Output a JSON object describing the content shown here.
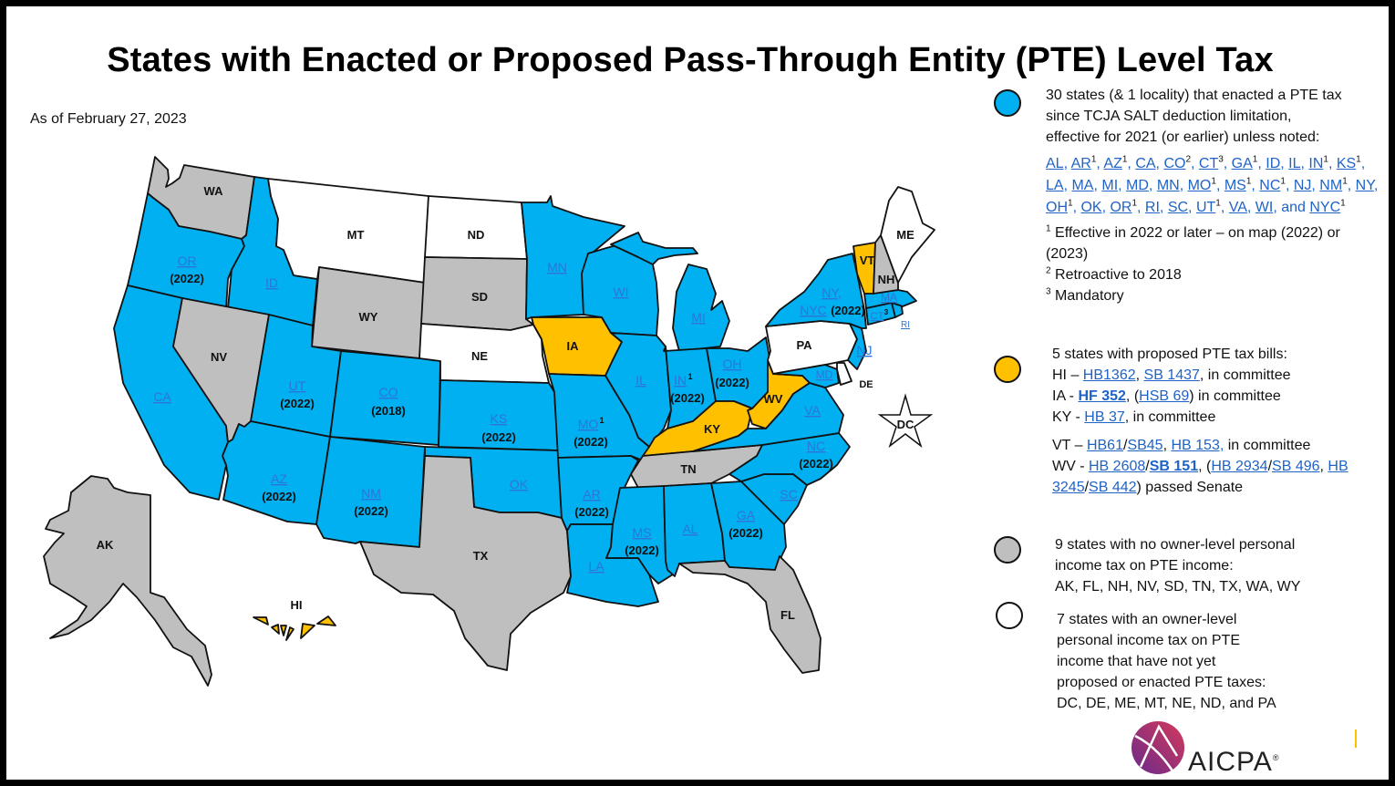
{
  "title": "States with Enacted or Proposed Pass-Through Entity (PTE) Level Tax",
  "as_of": "As of February 27, 2023",
  "colors": {
    "enacted": "#00b0f0",
    "proposed": "#ffc000",
    "no_income_tax": "#bfbfbf",
    "not_yet": "#ffffff",
    "link": "#1f63c6"
  },
  "map": {
    "states": [
      {
        "abbr": "WA",
        "category": "no_income_tax",
        "year": ""
      },
      {
        "abbr": "OR",
        "category": "enacted",
        "year": "(2022)"
      },
      {
        "abbr": "CA",
        "category": "enacted",
        "year": ""
      },
      {
        "abbr": "ID",
        "category": "enacted",
        "year": ""
      },
      {
        "abbr": "NV",
        "category": "no_income_tax",
        "year": ""
      },
      {
        "abbr": "MT",
        "category": "not_yet",
        "year": ""
      },
      {
        "abbr": "WY",
        "category": "no_income_tax",
        "year": ""
      },
      {
        "abbr": "UT",
        "category": "enacted",
        "year": "(2022)"
      },
      {
        "abbr": "AZ",
        "category": "enacted",
        "year": "(2022)"
      },
      {
        "abbr": "CO",
        "category": "enacted",
        "year": "(2018)"
      },
      {
        "abbr": "NM",
        "category": "enacted",
        "year": "(2022)"
      },
      {
        "abbr": "ND",
        "category": "not_yet",
        "year": ""
      },
      {
        "abbr": "SD",
        "category": "no_income_tax",
        "year": ""
      },
      {
        "abbr": "NE",
        "category": "not_yet",
        "year": ""
      },
      {
        "abbr": "KS",
        "category": "enacted",
        "year": "(2022)"
      },
      {
        "abbr": "OK",
        "category": "enacted",
        "year": ""
      },
      {
        "abbr": "TX",
        "category": "no_income_tax",
        "year": ""
      },
      {
        "abbr": "MN",
        "category": "enacted",
        "year": ""
      },
      {
        "abbr": "IA",
        "category": "proposed",
        "year": ""
      },
      {
        "abbr": "MO",
        "category": "enacted",
        "year": "(2022)",
        "sup": "1"
      },
      {
        "abbr": "AR",
        "category": "enacted",
        "year": "(2022)"
      },
      {
        "abbr": "LA",
        "category": "enacted",
        "year": ""
      },
      {
        "abbr": "WI",
        "category": "enacted",
        "year": ""
      },
      {
        "abbr": "IL",
        "category": "enacted",
        "year": ""
      },
      {
        "abbr": "MI",
        "category": "enacted",
        "year": ""
      },
      {
        "abbr": "IN",
        "category": "enacted",
        "year": "(2022)",
        "sup": "1"
      },
      {
        "abbr": "OH",
        "category": "enacted",
        "year": "(2022)"
      },
      {
        "abbr": "KY",
        "category": "proposed",
        "year": ""
      },
      {
        "abbr": "TN",
        "category": "no_income_tax",
        "year": ""
      },
      {
        "abbr": "MS",
        "category": "enacted",
        "year": "(2022)"
      },
      {
        "abbr": "AL",
        "category": "enacted",
        "year": ""
      },
      {
        "abbr": "GA",
        "category": "enacted",
        "year": "(2022)"
      },
      {
        "abbr": "FL",
        "category": "no_income_tax",
        "year": ""
      },
      {
        "abbr": "SC",
        "category": "enacted",
        "year": ""
      },
      {
        "abbr": "NC",
        "category": "enacted",
        "year": "(2022)"
      },
      {
        "abbr": "VA",
        "category": "enacted",
        "year": ""
      },
      {
        "abbr": "WV",
        "category": "proposed",
        "year": ""
      },
      {
        "abbr": "PA",
        "category": "not_yet",
        "year": ""
      },
      {
        "abbr": "MD",
        "category": "enacted",
        "year": ""
      },
      {
        "abbr": "DE",
        "category": "not_yet",
        "year": ""
      },
      {
        "abbr": "NJ",
        "category": "enacted",
        "year": ""
      },
      {
        "abbr": "NY",
        "category": "enacted",
        "year": "(2022)",
        "extra": "NYC"
      },
      {
        "abbr": "CT",
        "category": "enacted",
        "year": "",
        "sup": "3"
      },
      {
        "abbr": "RI",
        "category": "enacted",
        "year": ""
      },
      {
        "abbr": "MA",
        "category": "enacted",
        "year": ""
      },
      {
        "abbr": "VT",
        "category": "proposed",
        "year": ""
      },
      {
        "abbr": "NH",
        "category": "no_income_tax",
        "year": ""
      },
      {
        "abbr": "ME",
        "category": "not_yet",
        "year": ""
      },
      {
        "abbr": "AK",
        "category": "no_income_tax",
        "year": ""
      },
      {
        "abbr": "HI",
        "category": "proposed",
        "year": ""
      },
      {
        "abbr": "DC",
        "category": "not_yet",
        "year": ""
      }
    ],
    "labels": {
      "WA": "WA",
      "OR": "OR",
      "CA": "CA",
      "ID": "ID",
      "NV": "NV",
      "MT": "MT",
      "WY": "WY",
      "UT": "UT",
      "AZ": "AZ",
      "CO": "CO",
      "NM": "NM",
      "ND": "ND",
      "SD": "SD",
      "NE": "NE",
      "KS": "KS",
      "OK": "OK",
      "TX": "TX",
      "MN": "MN",
      "IA": "IA",
      "MO": "MO",
      "AR": "AR",
      "LA": "LA",
      "WI": "WI",
      "IL": "IL",
      "MI": "MI",
      "IN": "IN",
      "OH": "OH",
      "KY": "KY",
      "TN": "TN",
      "MS": "MS",
      "AL": "AL",
      "GA": "GA",
      "FL": "FL",
      "SC": "SC",
      "NC": "NC",
      "VA": "VA",
      "WV": "WV",
      "PA": "PA",
      "MD": "MD",
      "DE": "DE",
      "NJ": "NJ",
      "NY": "NY,",
      "NYC": "NYC",
      "CT": "CT",
      "RI": "RI",
      "MA": "MA",
      "VT": "VT",
      "NH": "NH",
      "ME": "ME",
      "AK": "AK",
      "HI": "HI",
      "DC": "DC",
      "y2022": "(2022)",
      "y2018": "(2018)",
      "sup1": "1",
      "sup3": "3"
    }
  },
  "legend": {
    "enacted": {
      "heading": [
        "30 states (& 1 locality) that enacted a PTE tax",
        "since TCJA SALT deduction limitation,",
        "effective for 2021 (or earlier) unless noted:"
      ],
      "links": [
        {
          "abbr": "AL",
          "sup": ""
        },
        {
          "abbr": "AR",
          "sup": "1"
        },
        {
          "abbr": "AZ",
          "sup": "1"
        },
        {
          "abbr": "CA",
          "sup": ""
        },
        {
          "abbr": "CO",
          "sup": "2"
        },
        {
          "abbr": "CT",
          "sup": "3"
        },
        {
          "abbr": "GA",
          "sup": "1"
        },
        {
          "abbr": "ID",
          "sup": ""
        },
        {
          "abbr": "IL",
          "sup": ""
        },
        {
          "abbr": "IN",
          "sup": "1"
        },
        {
          "abbr": "KS",
          "sup": "1"
        },
        {
          "abbr": "LA",
          "sup": ""
        },
        {
          "abbr": "MA",
          "sup": ""
        },
        {
          "abbr": "MI",
          "sup": ""
        },
        {
          "abbr": "MD",
          "sup": ""
        },
        {
          "abbr": "MN",
          "sup": ""
        },
        {
          "abbr": "MO",
          "sup": "1"
        },
        {
          "abbr": "MS",
          "sup": "1"
        },
        {
          "abbr": "NC",
          "sup": "1"
        },
        {
          "abbr": "NJ",
          "sup": ""
        },
        {
          "abbr": "NM",
          "sup": "1"
        },
        {
          "abbr": "NY",
          "sup": ""
        },
        {
          "abbr": "OH",
          "sup": "1"
        },
        {
          "abbr": "OK",
          "sup": ""
        },
        {
          "abbr": "OR",
          "sup": "1"
        },
        {
          "abbr": "RI",
          "sup": ""
        },
        {
          "abbr": "SC",
          "sup": ""
        },
        {
          "abbr": "UT",
          "sup": "1"
        },
        {
          "abbr": "VA",
          "sup": ""
        },
        {
          "abbr": "WI",
          "sup": ""
        },
        {
          "abbr": "NYC",
          "sup": "1"
        }
      ],
      "and": "and",
      "footnotes": [
        {
          "mark": "1",
          "text": "Effective in 2022 or later – on map (2022) or (2023)"
        },
        {
          "mark": "2",
          "text": "Retroactive to 2018"
        },
        {
          "mark": "3",
          "text": "Mandatory"
        }
      ]
    },
    "proposed": {
      "heading": "5 states with proposed PTE tax bills:",
      "lines": [
        {
          "state": "HI",
          "sep": " – ",
          "bills": [
            "HB1362",
            "SB 1437"
          ],
          "suffix": ", in committee"
        },
        {
          "state": "IA",
          "sep": " - ",
          "bills": [
            "HF 352",
            "HSB 69"
          ],
          "suffix": " in committee"
        },
        {
          "state": "KY",
          "sep": " - ",
          "bills": [
            "HB 37"
          ],
          "suffix": ", in committee"
        },
        {
          "state": "VT",
          "sep": " – ",
          "bills": [
            "HB61",
            "SB45",
            "HB 153,"
          ],
          "suffix": " in committee"
        },
        {
          "state": "WV",
          "sep": " - ",
          "bills": [
            "HB 2608",
            "SB 151",
            "HB 2934",
            "SB 496",
            "HB 3245",
            "SB 442"
          ],
          "suffix": ") passed Senate"
        }
      ]
    },
    "no_income_tax": {
      "heading": [
        "9 states with no owner-level personal",
        "income tax on PTE income:"
      ],
      "states": "AK, FL, NH, NV, SD, TN, TX, WA, WY"
    },
    "not_yet": {
      "heading": [
        "7 states with an owner-level",
        "personal income tax on PTE",
        "income that have not yet",
        "proposed or enacted PTE taxes:"
      ],
      "states": "DC, DE,  ME, MT, NE, ND, and PA"
    }
  },
  "logo": {
    "text": "AICPA",
    "mark": "®"
  }
}
